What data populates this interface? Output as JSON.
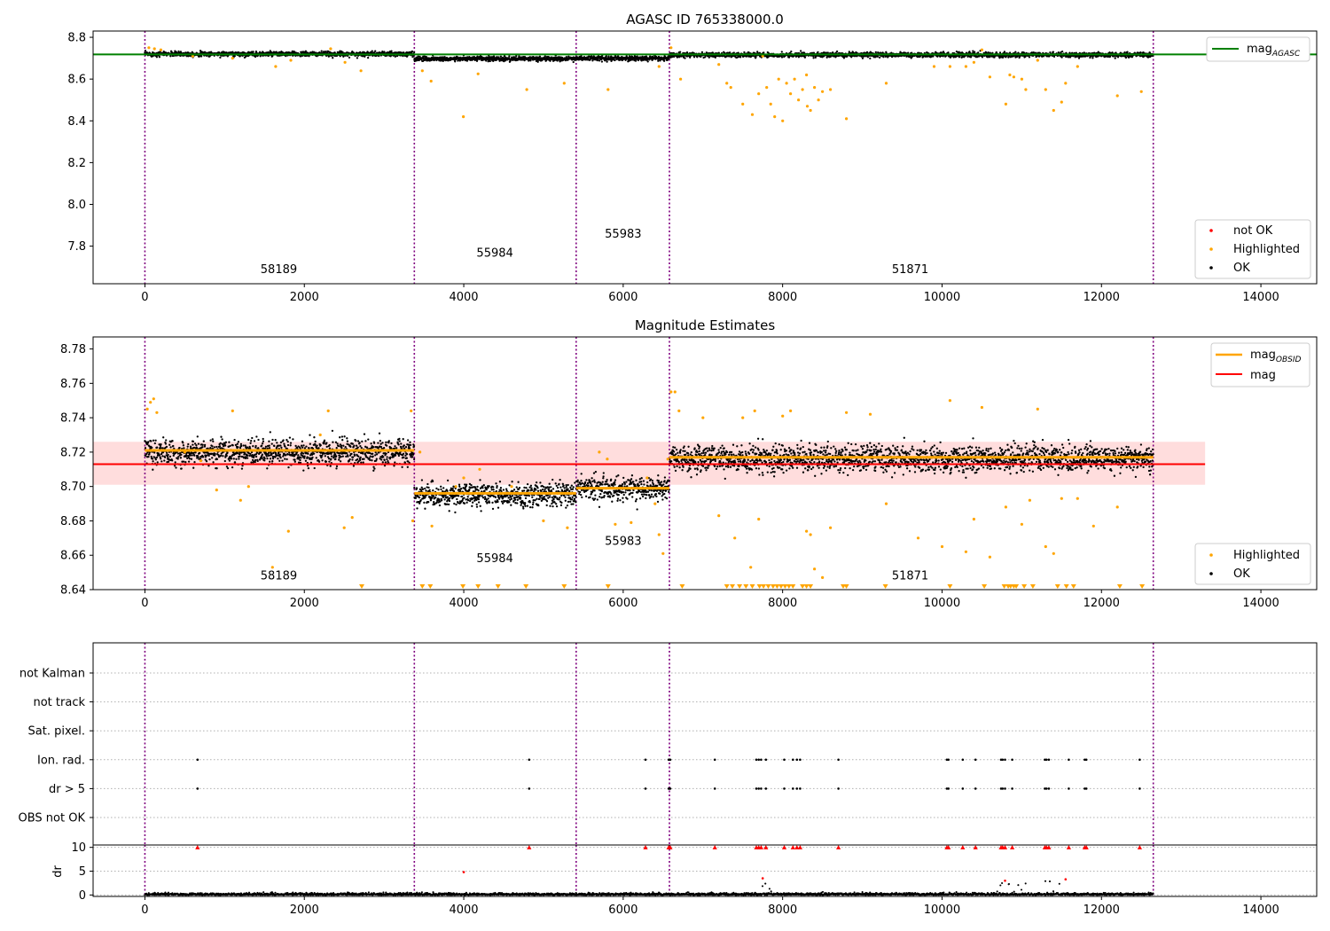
{
  "figure": {
    "suptitle": "AGASC ID 765338000.0",
    "obsids": [
      "58189",
      "55984",
      "55983",
      "51871"
    ],
    "obs_boundaries": [
      0,
      3380,
      5410,
      6580,
      12650
    ]
  },
  "colors": {
    "ok": "#000000",
    "highlighted": "#ffa500",
    "not_ok": "#ff0000",
    "mag_agasc": "#008000",
    "mag_obsid": "#ffa500",
    "mag": "#ff0000",
    "boundary": "#800080",
    "band": "#ffdddd"
  },
  "chart_data": [
    {
      "type": "scatter",
      "title": "AGASC ID 765338000.0",
      "xlim": [
        -650,
        14700
      ],
      "ylim": [
        7.62,
        8.83
      ],
      "xticks": [
        0,
        2000,
        4000,
        6000,
        8000,
        10000,
        12000,
        14000
      ],
      "yticks": [
        7.8,
        8.0,
        8.2,
        8.4,
        8.6,
        8.8
      ],
      "xtick_labels": [
        "0",
        "2000",
        "4000",
        "6000",
        "8000",
        "10000",
        "12000",
        "14000"
      ],
      "ytick_labels": [
        "7.8",
        "8.0",
        "8.2",
        "8.4",
        "8.6",
        "8.8"
      ],
      "mag_agasc": 8.718,
      "obs_label_positions": [
        {
          "label": "58189",
          "x": 1680,
          "y": 7.67
        },
        {
          "label": "55984",
          "x": 4390,
          "y": 7.75
        },
        {
          "label": "55983",
          "x": 6000,
          "y": 7.84
        },
        {
          "label": "51871",
          "x": 9600,
          "y": 7.67
        }
      ],
      "ok_bands": [
        {
          "x": [
            0,
            3380
          ],
          "center": 8.72,
          "spread": 0.01
        },
        {
          "x": [
            3380,
            5410
          ],
          "center": 8.697,
          "spread": 0.01
        },
        {
          "x": [
            5410,
            6580
          ],
          "center": 8.699,
          "spread": 0.01
        },
        {
          "x": [
            6580,
            12650
          ],
          "center": 8.716,
          "spread": 0.01
        }
      ],
      "highlighted": [
        [
          50,
          8.75
        ],
        [
          120,
          8.745
        ],
        [
          200,
          8.74
        ],
        [
          600,
          8.71
        ],
        [
          1100,
          8.7
        ],
        [
          1640,
          8.66
        ],
        [
          1830,
          8.69
        ],
        [
          2330,
          8.745
        ],
        [
          2510,
          8.68
        ],
        [
          2710,
          8.64
        ],
        [
          3480,
          8.64
        ],
        [
          3590,
          8.59
        ],
        [
          3995,
          8.42
        ],
        [
          4180,
          8.625
        ],
        [
          4790,
          8.55
        ],
        [
          5260,
          8.58
        ],
        [
          5810,
          8.55
        ],
        [
          6450,
          8.66
        ],
        [
          6600,
          8.75
        ],
        [
          6720,
          8.6
        ],
        [
          7200,
          8.67
        ],
        [
          7300,
          8.58
        ],
        [
          7350,
          8.56
        ],
        [
          7500,
          8.48
        ],
        [
          7620,
          8.43
        ],
        [
          7700,
          8.53
        ],
        [
          7750,
          8.71
        ],
        [
          7800,
          8.56
        ],
        [
          7850,
          8.48
        ],
        [
          7900,
          8.42
        ],
        [
          7950,
          8.6
        ],
        [
          8000,
          8.4
        ],
        [
          8050,
          8.58
        ],
        [
          8100,
          8.53
        ],
        [
          8150,
          8.6
        ],
        [
          8200,
          8.5
        ],
        [
          8250,
          8.55
        ],
        [
          8300,
          8.62
        ],
        [
          8310,
          8.47
        ],
        [
          8350,
          8.45
        ],
        [
          8400,
          8.56
        ],
        [
          8450,
          8.5
        ],
        [
          8500,
          8.54
        ],
        [
          8600,
          8.55
        ],
        [
          8800,
          8.41
        ],
        [
          9300,
          8.58
        ],
        [
          9900,
          8.66
        ],
        [
          10100,
          8.66
        ],
        [
          10300,
          8.66
        ],
        [
          10400,
          8.68
        ],
        [
          10500,
          8.74
        ],
        [
          10600,
          8.61
        ],
        [
          10800,
          8.48
        ],
        [
          10850,
          8.62
        ],
        [
          10900,
          8.61
        ],
        [
          11000,
          8.6
        ],
        [
          11050,
          8.55
        ],
        [
          11200,
          8.69
        ],
        [
          11300,
          8.55
        ],
        [
          11400,
          8.45
        ],
        [
          11500,
          8.49
        ],
        [
          11550,
          8.58
        ],
        [
          11700,
          8.66
        ],
        [
          12200,
          8.52
        ],
        [
          12500,
          8.54
        ]
      ],
      "legends": [
        {
          "position": "top-right",
          "entries": [
            "mag_AGASC"
          ]
        },
        {
          "position": "bottom-right",
          "entries": [
            "not OK",
            "Highlighted",
            "OK"
          ]
        }
      ]
    },
    {
      "type": "scatter",
      "title": "Magnitude Estimates",
      "xlim": [
        -650,
        14700
      ],
      "ylim": [
        8.64,
        8.787
      ],
      "xticks": [
        0,
        2000,
        4000,
        6000,
        8000,
        10000,
        12000,
        14000
      ],
      "yticks": [
        8.64,
        8.66,
        8.68,
        8.7,
        8.72,
        8.74,
        8.76,
        8.78
      ],
      "xtick_labels": [
        "0",
        "2000",
        "4000",
        "6000",
        "8000",
        "10000",
        "12000",
        "14000"
      ],
      "ytick_labels": [
        "8.64",
        "8.66",
        "8.68",
        "8.70",
        "8.72",
        "8.74",
        "8.76",
        "8.78"
      ],
      "mag": 8.713,
      "mag_band": [
        8.701,
        8.726
      ],
      "mag_band_x": [
        -650,
        13300
      ],
      "mag_obsid": [
        {
          "obsid": "58189",
          "x": [
            0,
            3380
          ],
          "value": 8.721
        },
        {
          "obsid": "55984",
          "x": [
            3380,
            5410
          ],
          "value": 8.696
        },
        {
          "obsid": "55983",
          "x": [
            5410,
            6580
          ],
          "value": 8.699
        },
        {
          "obsid": "51871",
          "x": [
            6580,
            12650
          ],
          "value": 8.717
        }
      ],
      "obs_label_positions": [
        {
          "label": "58189",
          "x": 1680,
          "y": 8.646
        },
        {
          "label": "55984",
          "x": 4390,
          "y": 8.656
        },
        {
          "label": "55983",
          "x": 6000,
          "y": 8.666
        },
        {
          "label": "51871",
          "x": 9600,
          "y": 8.646
        }
      ],
      "ok_bands": [
        {
          "x": [
            0,
            3380
          ],
          "center": 8.72,
          "spread": 0.007
        },
        {
          "x": [
            3380,
            5410
          ],
          "center": 8.695,
          "spread": 0.006
        },
        {
          "x": [
            5410,
            6580
          ],
          "center": 8.699,
          "spread": 0.006
        },
        {
          "x": [
            6580,
            12650
          ],
          "center": 8.716,
          "spread": 0.007
        }
      ],
      "highlighted": [
        [
          30,
          8.745
        ],
        [
          70,
          8.749
        ],
        [
          110,
          8.751
        ],
        [
          150,
          8.743
        ],
        [
          500,
          8.72
        ],
        [
          700,
          8.715
        ],
        [
          900,
          8.698
        ],
        [
          1100,
          8.744
        ],
        [
          1200,
          8.692
        ],
        [
          1300,
          8.7
        ],
        [
          1600,
          8.653
        ],
        [
          1800,
          8.674
        ],
        [
          2200,
          8.73
        ],
        [
          2300,
          8.744
        ],
        [
          2500,
          8.676
        ],
        [
          2600,
          8.682
        ],
        [
          3340,
          8.744
        ],
        [
          3360,
          8.68
        ],
        [
          3450,
          8.72
        ],
        [
          3600,
          8.677
        ],
        [
          3900,
          8.7
        ],
        [
          4000,
          8.705
        ],
        [
          4200,
          8.71
        ],
        [
          4600,
          8.7
        ],
        [
          5000,
          8.68
        ],
        [
          5300,
          8.676
        ],
        [
          5700,
          8.72
        ],
        [
          5800,
          8.716
        ],
        [
          5900,
          8.678
        ],
        [
          6100,
          8.679
        ],
        [
          6300,
          8.705
        ],
        [
          6400,
          8.69
        ],
        [
          6450,
          8.672
        ],
        [
          6500,
          8.661
        ],
        [
          6560,
          8.716
        ],
        [
          6600,
          8.755
        ],
        [
          6650,
          8.755
        ],
        [
          6700,
          8.744
        ],
        [
          7000,
          8.74
        ],
        [
          7200,
          8.683
        ],
        [
          7400,
          8.67
        ],
        [
          7500,
          8.74
        ],
        [
          7600,
          8.653
        ],
        [
          7650,
          8.744
        ],
        [
          7700,
          8.681
        ],
        [
          8000,
          8.741
        ],
        [
          8100,
          8.744
        ],
        [
          8300,
          8.674
        ],
        [
          8350,
          8.672
        ],
        [
          8400,
          8.652
        ],
        [
          8500,
          8.647
        ],
        [
          8600,
          8.676
        ],
        [
          8800,
          8.743
        ],
        [
          9100,
          8.742
        ],
        [
          9300,
          8.69
        ],
        [
          9700,
          8.67
        ],
        [
          10000,
          8.665
        ],
        [
          10100,
          8.75
        ],
        [
          10300,
          8.662
        ],
        [
          10400,
          8.681
        ],
        [
          10500,
          8.746
        ],
        [
          10600,
          8.659
        ],
        [
          10800,
          8.688
        ],
        [
          11000,
          8.678
        ],
        [
          11100,
          8.692
        ],
        [
          11200,
          8.745
        ],
        [
          11300,
          8.665
        ],
        [
          11400,
          8.661
        ],
        [
          11500,
          8.693
        ],
        [
          11700,
          8.693
        ],
        [
          11900,
          8.677
        ],
        [
          12200,
          8.688
        ]
      ],
      "clipped_low_x": [
        2720,
        3480,
        3580,
        3990,
        4180,
        4430,
        4780,
        5260,
        5810,
        6740,
        7300,
        7370,
        7460,
        7540,
        7620,
        7710,
        7760,
        7820,
        7880,
        7930,
        7980,
        8030,
        8080,
        8130,
        8250,
        8300,
        8350,
        8760,
        8800,
        9290,
        10100,
        10530,
        10780,
        10830,
        10860,
        10900,
        10930,
        11030,
        11140,
        11450,
        11560,
        11650,
        12230,
        12510
      ],
      "legends": [
        {
          "position": "top-right",
          "entries": [
            "mag_OBSID",
            "mag"
          ]
        },
        {
          "position": "bottom-right",
          "entries": [
            "Highlighted",
            "OK"
          ]
        }
      ]
    },
    {
      "type": "scatter",
      "title": "",
      "xlim": [
        -650,
        14700
      ],
      "categories": [
        "not Kalman",
        "not track",
        "Sat. pixel.",
        "Ion. rad.",
        "dr > 5",
        "OBS not OK"
      ],
      "flag_times": [
        660,
        4820,
        6280,
        6570,
        6580,
        6590,
        7150,
        7670,
        7700,
        7730,
        7790,
        8020,
        8130,
        8180,
        8220,
        8700,
        10060,
        10080,
        10260,
        10420,
        10740,
        10760,
        10790,
        10880,
        11290,
        11310,
        11340,
        11590,
        11790,
        11810,
        12480
      ],
      "flag_rows": [
        "Ion. rad.",
        "dr > 5"
      ]
    },
    {
      "type": "scatter",
      "title": "",
      "xlim": [
        -650,
        14700
      ],
      "ylim": [
        -0.3,
        10.5
      ],
      "ylabel": "dr",
      "xticks": [
        0,
        2000,
        4000,
        6000,
        8000,
        10000,
        12000,
        14000
      ],
      "yticks": [
        0,
        5,
        10
      ],
      "xtick_labels": [
        "0",
        "2000",
        "4000",
        "6000",
        "8000",
        "10000",
        "12000",
        "14000"
      ],
      "ytick_labels": [
        "0",
        "5",
        "10"
      ],
      "dr_clip": 10,
      "dr_baseline": 0.4,
      "dr_bumps": [
        {
          "x": [
            7000,
            7150
          ],
          "max": 1.8
        },
        {
          "x": [
            7700,
            8200
          ],
          "max": 2.6
        },
        {
          "x": [
            10600,
            11700
          ],
          "max": 3.2
        }
      ],
      "red_clipped_x": [
        660,
        4820,
        6280,
        6570,
        6590,
        7150,
        7670,
        7700,
        7730,
        7790,
        8020,
        8130,
        8180,
        8220,
        8700,
        10060,
        10080,
        10260,
        10420,
        10740,
        10760,
        10790,
        10880,
        11290,
        11310,
        11340,
        11590,
        11790,
        11810,
        12480
      ],
      "red_points": [
        [
          4000,
          4.8
        ],
        [
          7750,
          3.5
        ],
        [
          10790,
          3.0
        ],
        [
          11550,
          3.3
        ]
      ]
    }
  ]
}
